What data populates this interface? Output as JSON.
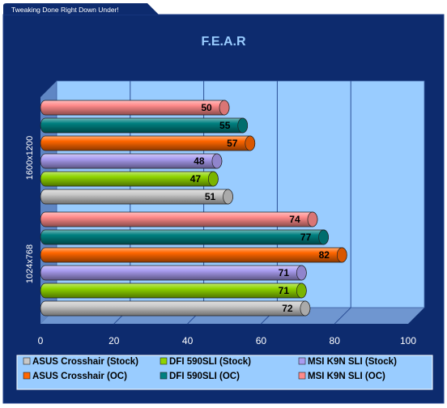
{
  "header": {
    "tagline": "Tweaking Done Right Down Under!"
  },
  "colors": {
    "frame": "#0d2b6e",
    "plot_bg": "#99ccff",
    "title": "#99ccff",
    "axis_text": "#ffffff"
  },
  "chart_data": {
    "type": "bar",
    "orientation": "horizontal",
    "title": "F.E.A.R",
    "xlabel": "",
    "ylabel": "",
    "xlim": [
      0,
      100
    ],
    "xticks": [
      0,
      20,
      40,
      60,
      80,
      100
    ],
    "grid": true,
    "legend_position": "bottom",
    "categories": [
      "1600x1200",
      "1024x768"
    ],
    "series": [
      {
        "name": "ASUS Crosshair (Stock)",
        "color": "#c8c8c8",
        "values": [
          51,
          72
        ]
      },
      {
        "name": "DFI 590SLI (Stock)",
        "color": "#8fd400",
        "values": [
          47,
          71
        ]
      },
      {
        "name": "MSI K9N SLI (Stock)",
        "color": "#a99cf0",
        "values": [
          48,
          71
        ]
      },
      {
        "name": "ASUS Crosshair (OC)",
        "color": "#ff6600",
        "values": [
          57,
          82
        ]
      },
      {
        "name": "DFI 590SLI (OC)",
        "color": "#008080",
        "values": [
          55,
          77
        ]
      },
      {
        "name": "MSI K9N SLI (OC)",
        "color": "#ff8a8a",
        "values": [
          50,
          74
        ]
      }
    ]
  }
}
